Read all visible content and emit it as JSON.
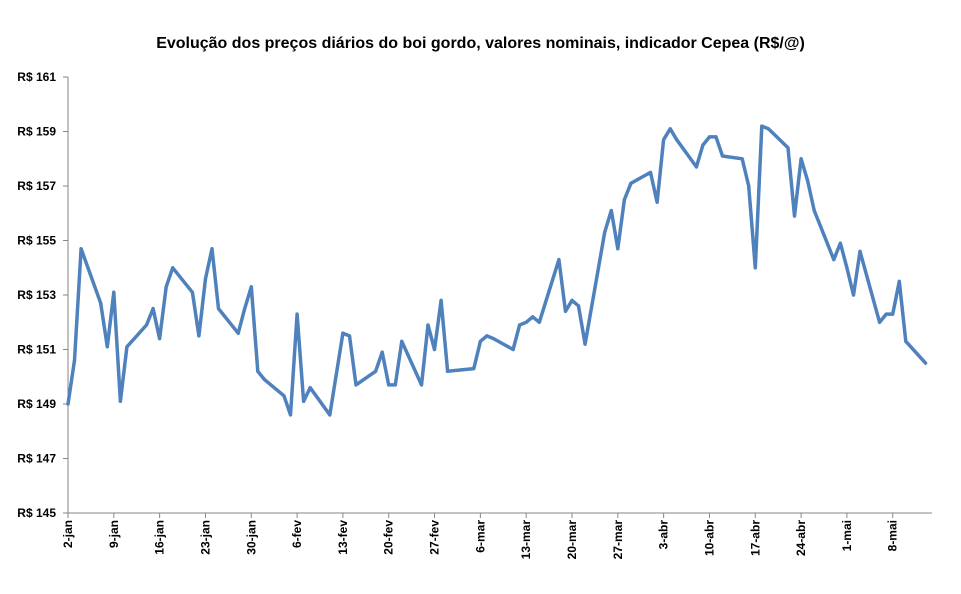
{
  "chart_data": {
    "type": "line",
    "title": "Evolução dos preços diários do boi gordo, valores nominais, indicador Cepea (R$/@)",
    "xlabel": "",
    "ylabel": "",
    "ylim": [
      145,
      161
    ],
    "yticks": [
      "R$ 145",
      "R$ 147",
      "R$ 149",
      "R$ 151",
      "R$ 153",
      "R$ 155",
      "R$ 157",
      "R$ 159",
      "R$ 161"
    ],
    "ytick_values": [
      145,
      147,
      149,
      151,
      153,
      155,
      157,
      159,
      161
    ],
    "xtick_labels": [
      "2-jan",
      "9-jan",
      "16-jan",
      "23-jan",
      "30-jan",
      "6-fev",
      "13-fev",
      "20-fev",
      "27-fev",
      "6-mar",
      "13-mar",
      "20-mar",
      "27-mar",
      "3-abr",
      "10-abr",
      "17-abr",
      "24-abr",
      "1-mai",
      "8-mai"
    ],
    "grid": false,
    "legend": "none",
    "colors": {
      "line": "#4F81BD",
      "axis": "#868686"
    },
    "series": [
      {
        "x": [
          "2-jan",
          "3-jan",
          "4-jan",
          "7-jan",
          "8-jan",
          "9-jan",
          "10-jan",
          "11-jan",
          "14-jan",
          "15-jan",
          "16-jan",
          "17-jan",
          "18-jan",
          "21-jan",
          "22-jan",
          "23-jan",
          "24-jan",
          "25-jan",
          "28-jan",
          "29-jan",
          "30-jan",
          "31-jan",
          "1-fev",
          "4-fev",
          "5-fev",
          "6-fev",
          "7-fev",
          "8-fev",
          "11-fev",
          "13-fev",
          "14-fev",
          "15-fev",
          "18-fev",
          "19-fev",
          "20-fev",
          "21-fev",
          "22-fev",
          "25-fev",
          "26-fev",
          "27-fev",
          "28-fev",
          "1-mar",
          "5-mar",
          "6-mar",
          "7-mar",
          "8-mar",
          "11-mar",
          "12-mar",
          "13-mar",
          "14-mar",
          "15-mar",
          "18-mar",
          "19-mar",
          "20-mar",
          "21-mar",
          "22-mar",
          "25-mar",
          "26-mar",
          "27-mar",
          "28-mar",
          "29-mar",
          "1-abr",
          "2-abr",
          "3-abr",
          "4-abr",
          "5-abr",
          "8-abr",
          "9-abr",
          "10-abr",
          "11-abr",
          "12-abr",
          "15-abr",
          "16-abr",
          "17-abr",
          "18-abr",
          "19-abr",
          "22-abr",
          "23-abr",
          "24-abr",
          "25-abr",
          "26-abr",
          "29-abr",
          "30-abr",
          "1-mai",
          "2-mai",
          "3-mai",
          "6-mai",
          "7-mai",
          "8-mai",
          "9-mai",
          "10-mai",
          "13-mai"
        ],
        "values": [
          149.0,
          150.6,
          154.7,
          152.7,
          151.1,
          153.1,
          149.1,
          151.1,
          151.9,
          152.5,
          151.4,
          153.3,
          154.0,
          153.1,
          151.5,
          153.6,
          154.7,
          152.5,
          151.6,
          152.5,
          153.3,
          150.2,
          149.9,
          149.3,
          148.6,
          152.3,
          149.1,
          149.6,
          148.6,
          151.6,
          151.5,
          149.7,
          150.2,
          150.9,
          149.7,
          149.7,
          151.3,
          149.7,
          151.9,
          151.0,
          152.8,
          150.2,
          150.3,
          151.3,
          151.5,
          151.4,
          151.0,
          151.9,
          152.0,
          152.2,
          152.0,
          154.3,
          152.4,
          152.8,
          152.6,
          151.2,
          155.3,
          156.1,
          154.7,
          156.5,
          157.1,
          157.5,
          156.4,
          158.7,
          159.1,
          158.7,
          157.7,
          158.5,
          158.8,
          158.8,
          158.1,
          158.0,
          157.0,
          154.0,
          159.2,
          159.1,
          158.4,
          155.9,
          158.0,
          157.2,
          156.1,
          154.3,
          154.9,
          154.0,
          153.0,
          154.6,
          152.0,
          152.3,
          152.3,
          153.5,
          151.3,
          150.5
        ]
      }
    ]
  }
}
